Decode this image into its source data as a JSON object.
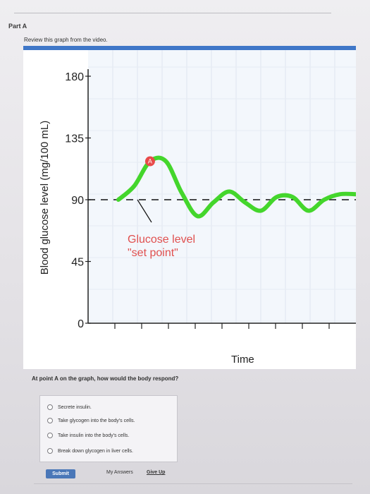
{
  "part": "Part A",
  "instruction": "Review this graph from the video.",
  "question": "At point A on the graph, how would the body respond?",
  "options": [
    {
      "label": "Secrete insulin."
    },
    {
      "label": "Take glycogen into the body's cells."
    },
    {
      "label": "Take insulin into the body's cells."
    },
    {
      "label": "Break down glycogen in liver cells."
    }
  ],
  "buttons": {
    "submit": "Submit",
    "my_answers": "My Answers",
    "give_up": "Give Up"
  },
  "chart_data": {
    "type": "line",
    "ylabel": "Blood glucose level (mg/100 mL)",
    "xlabel": "Time",
    "yticks": [
      "180",
      "135",
      "90",
      "45",
      "0"
    ],
    "ylim": [
      0,
      180
    ],
    "set_point": 90,
    "set_point_label_line1": "Glucose level",
    "set_point_label_line2": "\"set point\"",
    "point_label": "A",
    "series": [
      {
        "color": "#44d62c",
        "x": [
          0,
          1,
          2,
          3,
          4,
          5,
          6,
          7,
          8,
          9,
          10,
          11,
          12,
          13,
          14,
          15
        ],
        "values": [
          90,
          100,
          118,
          118,
          95,
          78,
          88,
          96,
          88,
          82,
          92,
          92,
          82,
          90,
          94,
          94
        ]
      }
    ],
    "colors": {
      "set_point_label": "#e0504f",
      "point_marker": "#e84a4a",
      "header": "#3f77c8"
    }
  }
}
